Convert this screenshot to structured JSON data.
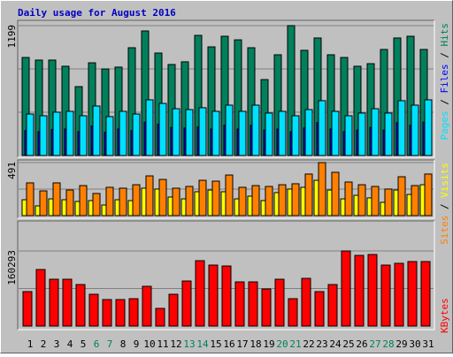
{
  "chart_data": [
    {
      "type": "bar",
      "title": "Daily usage for August 2016",
      "ylim": [
        0,
        1199
      ],
      "yticks": [
        1199
      ],
      "legend_separator": " / ",
      "series": [
        {
          "name": "Hits",
          "color": "#00805c",
          "values": [
            905,
            881,
            881,
            824,
            636,
            856,
            799,
            816,
            995,
            1150,
            946,
            840,
            865,
            1109,
            1003,
            1101,
            1068,
            995,
            701,
            930,
            1199,
            971,
            1085,
            930,
            905,
            824,
            848,
            979,
            1085,
            1101,
            979
          ]
        },
        {
          "name": "Files",
          "color": "#0000ff",
          "values": [
            230,
            220,
            240,
            245,
            220,
            274,
            215,
            245,
            230,
            308,
            289,
            259,
            254,
            265,
            245,
            279,
            245,
            279,
            235,
            245,
            220,
            254,
            304,
            245,
            220,
            235,
            259,
            235,
            304,
            279,
            308
          ]
        },
        {
          "name": "Pages",
          "color": "#00e0ff",
          "values": [
            383,
            367,
            400,
            408,
            367,
            457,
            359,
            408,
            383,
            514,
            481,
            432,
            424,
            441,
            408,
            465,
            408,
            465,
            392,
            408,
            367,
            424,
            506,
            408,
            367,
            392,
            432,
            392,
            506,
            465,
            514
          ]
        }
      ]
    },
    {
      "type": "bar",
      "ylim": [
        0,
        491
      ],
      "yticks": [
        491
      ],
      "legend_separator": " / ",
      "series": [
        {
          "name": "Visits",
          "color": "#ffff00",
          "values": [
            147,
            90,
            155,
            147,
            131,
            139,
            98,
            147,
            139,
            254,
            246,
            172,
            155,
            221,
            237,
            221,
            155,
            180,
            139,
            213,
            246,
            262,
            327,
            237,
            155,
            188,
            164,
            123,
            237,
            196,
            286
          ]
        },
        {
          "name": "Sites",
          "color": "#ff8000",
          "values": [
            303,
            229,
            303,
            237,
            278,
            205,
            262,
            254,
            286,
            368,
            335,
            254,
            270,
            327,
            319,
            376,
            262,
            278,
            270,
            286,
            295,
            385,
            491,
            401,
            311,
            286,
            270,
            246,
            360,
            278,
            385
          ]
        }
      ]
    },
    {
      "type": "bar",
      "ylim": [
        0,
        160293
      ],
      "yticks": [
        160293
      ],
      "categories": [
        "1",
        "2",
        "3",
        "4",
        "5",
        "6",
        "7",
        "8",
        "9",
        "10",
        "11",
        "12",
        "13",
        "14",
        "15",
        "16",
        "17",
        "18",
        "19",
        "20",
        "21",
        "22",
        "23",
        "24",
        "25",
        "26",
        "27",
        "28",
        "29",
        "30",
        "31"
      ],
      "category_colors": [
        "#000000",
        "#000000",
        "#000000",
        "#000000",
        "#000000",
        "#00805c",
        "#00805c",
        "#000000",
        "#000000",
        "#000000",
        "#000000",
        "#000000",
        "#00805c",
        "#00805c",
        "#000000",
        "#000000",
        "#000000",
        "#000000",
        "#000000",
        "#00805c",
        "#00805c",
        "#000000",
        "#000000",
        "#000000",
        "#000000",
        "#000000",
        "#00805c",
        "#00805c",
        "#000000",
        "#000000",
        "#000000"
      ],
      "series": [
        {
          "name": "KBytes",
          "color": "#ff0000",
          "values": [
            73545,
            120688,
            99943,
            99943,
            88628,
            67888,
            56573,
            56573,
            58459,
            84857,
            37716,
            67888,
            96172,
            139548,
            130119,
            128233,
            94286,
            94286,
            79201,
            99943,
            58459,
            101829,
            73545,
            88628,
            160293,
            150864,
            152750,
            130119,
            133890,
            137662,
            137662
          ]
        }
      ]
    }
  ]
}
